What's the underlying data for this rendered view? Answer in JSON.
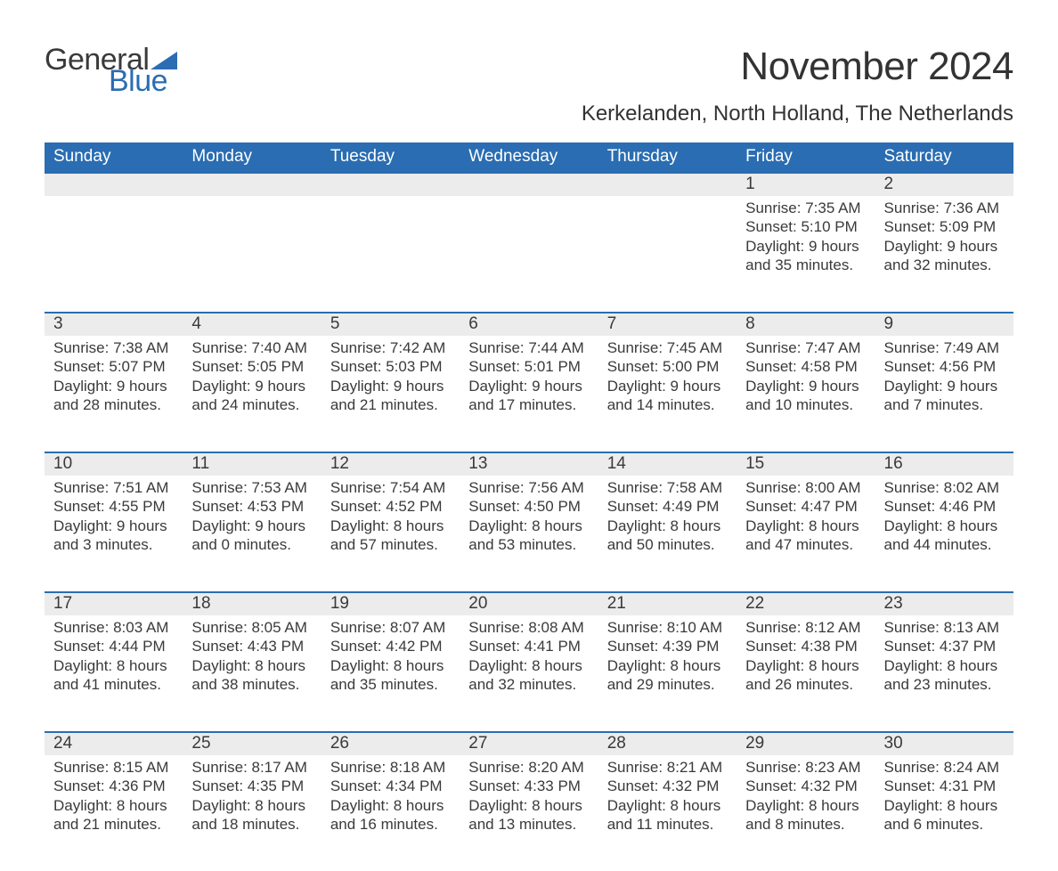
{
  "brand": {
    "part1": "General",
    "part2": "Blue",
    "triangle_color": "#2a6db2"
  },
  "title": "November 2024",
  "location": "Kerkelanden, North Holland, The Netherlands",
  "colors": {
    "header_bg": "#2a6db2",
    "header_text": "#ffffff",
    "daynum_bg": "#ececec",
    "daynum_border": "#2a6db2",
    "text": "#3a3a3a",
    "page_bg": "#ffffff"
  },
  "weekdays": [
    "Sunday",
    "Monday",
    "Tuesday",
    "Wednesday",
    "Thursday",
    "Friday",
    "Saturday"
  ],
  "weeks": [
    [
      null,
      null,
      null,
      null,
      null,
      {
        "n": "1",
        "sunrise": "Sunrise: 7:35 AM",
        "sunset": "Sunset: 5:10 PM",
        "d1": "Daylight: 9 hours",
        "d2": "and 35 minutes."
      },
      {
        "n": "2",
        "sunrise": "Sunrise: 7:36 AM",
        "sunset": "Sunset: 5:09 PM",
        "d1": "Daylight: 9 hours",
        "d2": "and 32 minutes."
      }
    ],
    [
      {
        "n": "3",
        "sunrise": "Sunrise: 7:38 AM",
        "sunset": "Sunset: 5:07 PM",
        "d1": "Daylight: 9 hours",
        "d2": "and 28 minutes."
      },
      {
        "n": "4",
        "sunrise": "Sunrise: 7:40 AM",
        "sunset": "Sunset: 5:05 PM",
        "d1": "Daylight: 9 hours",
        "d2": "and 24 minutes."
      },
      {
        "n": "5",
        "sunrise": "Sunrise: 7:42 AM",
        "sunset": "Sunset: 5:03 PM",
        "d1": "Daylight: 9 hours",
        "d2": "and 21 minutes."
      },
      {
        "n": "6",
        "sunrise": "Sunrise: 7:44 AM",
        "sunset": "Sunset: 5:01 PM",
        "d1": "Daylight: 9 hours",
        "d2": "and 17 minutes."
      },
      {
        "n": "7",
        "sunrise": "Sunrise: 7:45 AM",
        "sunset": "Sunset: 5:00 PM",
        "d1": "Daylight: 9 hours",
        "d2": "and 14 minutes."
      },
      {
        "n": "8",
        "sunrise": "Sunrise: 7:47 AM",
        "sunset": "Sunset: 4:58 PM",
        "d1": "Daylight: 9 hours",
        "d2": "and 10 minutes."
      },
      {
        "n": "9",
        "sunrise": "Sunrise: 7:49 AM",
        "sunset": "Sunset: 4:56 PM",
        "d1": "Daylight: 9 hours",
        "d2": "and 7 minutes."
      }
    ],
    [
      {
        "n": "10",
        "sunrise": "Sunrise: 7:51 AM",
        "sunset": "Sunset: 4:55 PM",
        "d1": "Daylight: 9 hours",
        "d2": "and 3 minutes."
      },
      {
        "n": "11",
        "sunrise": "Sunrise: 7:53 AM",
        "sunset": "Sunset: 4:53 PM",
        "d1": "Daylight: 9 hours",
        "d2": "and 0 minutes."
      },
      {
        "n": "12",
        "sunrise": "Sunrise: 7:54 AM",
        "sunset": "Sunset: 4:52 PM",
        "d1": "Daylight: 8 hours",
        "d2": "and 57 minutes."
      },
      {
        "n": "13",
        "sunrise": "Sunrise: 7:56 AM",
        "sunset": "Sunset: 4:50 PM",
        "d1": "Daylight: 8 hours",
        "d2": "and 53 minutes."
      },
      {
        "n": "14",
        "sunrise": "Sunrise: 7:58 AM",
        "sunset": "Sunset: 4:49 PM",
        "d1": "Daylight: 8 hours",
        "d2": "and 50 minutes."
      },
      {
        "n": "15",
        "sunrise": "Sunrise: 8:00 AM",
        "sunset": "Sunset: 4:47 PM",
        "d1": "Daylight: 8 hours",
        "d2": "and 47 minutes."
      },
      {
        "n": "16",
        "sunrise": "Sunrise: 8:02 AM",
        "sunset": "Sunset: 4:46 PM",
        "d1": "Daylight: 8 hours",
        "d2": "and 44 minutes."
      }
    ],
    [
      {
        "n": "17",
        "sunrise": "Sunrise: 8:03 AM",
        "sunset": "Sunset: 4:44 PM",
        "d1": "Daylight: 8 hours",
        "d2": "and 41 minutes."
      },
      {
        "n": "18",
        "sunrise": "Sunrise: 8:05 AM",
        "sunset": "Sunset: 4:43 PM",
        "d1": "Daylight: 8 hours",
        "d2": "and 38 minutes."
      },
      {
        "n": "19",
        "sunrise": "Sunrise: 8:07 AM",
        "sunset": "Sunset: 4:42 PM",
        "d1": "Daylight: 8 hours",
        "d2": "and 35 minutes."
      },
      {
        "n": "20",
        "sunrise": "Sunrise: 8:08 AM",
        "sunset": "Sunset: 4:41 PM",
        "d1": "Daylight: 8 hours",
        "d2": "and 32 minutes."
      },
      {
        "n": "21",
        "sunrise": "Sunrise: 8:10 AM",
        "sunset": "Sunset: 4:39 PM",
        "d1": "Daylight: 8 hours",
        "d2": "and 29 minutes."
      },
      {
        "n": "22",
        "sunrise": "Sunrise: 8:12 AM",
        "sunset": "Sunset: 4:38 PM",
        "d1": "Daylight: 8 hours",
        "d2": "and 26 minutes."
      },
      {
        "n": "23",
        "sunrise": "Sunrise: 8:13 AM",
        "sunset": "Sunset: 4:37 PM",
        "d1": "Daylight: 8 hours",
        "d2": "and 23 minutes."
      }
    ],
    [
      {
        "n": "24",
        "sunrise": "Sunrise: 8:15 AM",
        "sunset": "Sunset: 4:36 PM",
        "d1": "Daylight: 8 hours",
        "d2": "and 21 minutes."
      },
      {
        "n": "25",
        "sunrise": "Sunrise: 8:17 AM",
        "sunset": "Sunset: 4:35 PM",
        "d1": "Daylight: 8 hours",
        "d2": "and 18 minutes."
      },
      {
        "n": "26",
        "sunrise": "Sunrise: 8:18 AM",
        "sunset": "Sunset: 4:34 PM",
        "d1": "Daylight: 8 hours",
        "d2": "and 16 minutes."
      },
      {
        "n": "27",
        "sunrise": "Sunrise: 8:20 AM",
        "sunset": "Sunset: 4:33 PM",
        "d1": "Daylight: 8 hours",
        "d2": "and 13 minutes."
      },
      {
        "n": "28",
        "sunrise": "Sunrise: 8:21 AM",
        "sunset": "Sunset: 4:32 PM",
        "d1": "Daylight: 8 hours",
        "d2": "and 11 minutes."
      },
      {
        "n": "29",
        "sunrise": "Sunrise: 8:23 AM",
        "sunset": "Sunset: 4:32 PM",
        "d1": "Daylight: 8 hours",
        "d2": "and 8 minutes."
      },
      {
        "n": "30",
        "sunrise": "Sunrise: 8:24 AM",
        "sunset": "Sunset: 4:31 PM",
        "d1": "Daylight: 8 hours",
        "d2": "and 6 minutes."
      }
    ]
  ]
}
